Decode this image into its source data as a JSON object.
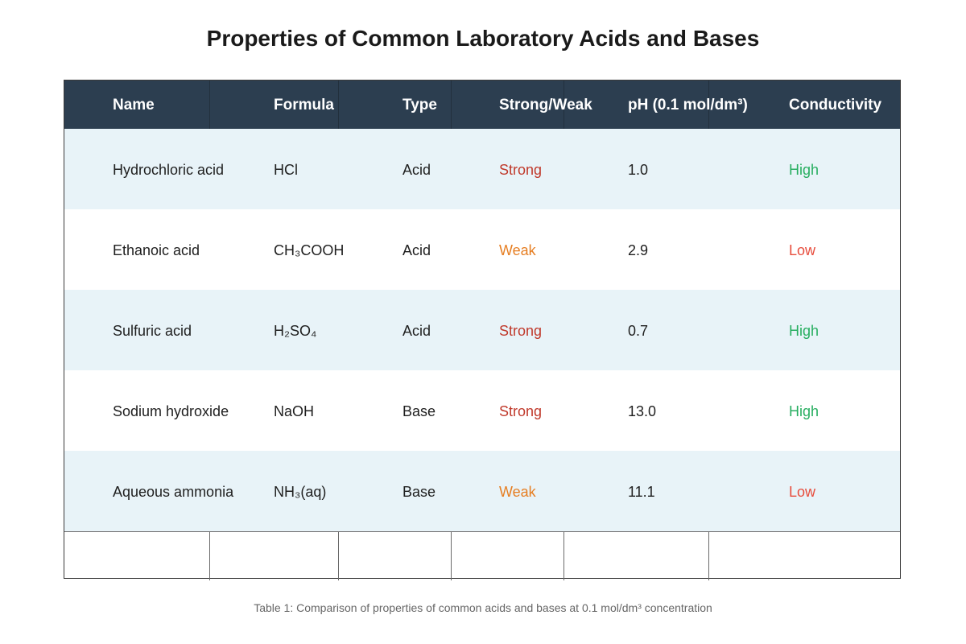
{
  "title": "Properties of Common Laboratory Acids and Bases",
  "columns": [
    "Name",
    "Formula",
    "Type",
    "Strong/Weak",
    "pH (0.1 mol/dm³)",
    "Conductivity"
  ],
  "rows": [
    {
      "name": "Hydrochloric acid",
      "formula": "HCl",
      "type": "Acid",
      "strength": "Strong",
      "ph": "1.0",
      "conductivity": "High"
    },
    {
      "name": "Ethanoic acid",
      "formula": "CH₃COOH",
      "type": "Acid",
      "strength": "Weak",
      "ph": "2.9",
      "conductivity": "Low"
    },
    {
      "name": "Sulfuric acid",
      "formula": "H₂SO₄",
      "type": "Acid",
      "strength": "Strong",
      "ph": "0.7",
      "conductivity": "High"
    },
    {
      "name": "Sodium hydroxide",
      "formula": "NaOH",
      "type": "Base",
      "strength": "Strong",
      "ph": "13.0",
      "conductivity": "High"
    },
    {
      "name": "Aqueous ammonia",
      "formula": "NH₃(aq)",
      "type": "Base",
      "strength": "Weak",
      "ph": "11.1",
      "conductivity": "Low"
    }
  ],
  "caption": "Table 1: Comparison of properties of common acids and bases at 0.1 mol/dm³ concentration",
  "colors": {
    "header_bg": "#2c3e50",
    "alt_row_bg": "#e8f3f8",
    "strong": "#c0392b",
    "weak": "#e67e22",
    "high": "#27ae60",
    "low": "#e74c3c"
  }
}
